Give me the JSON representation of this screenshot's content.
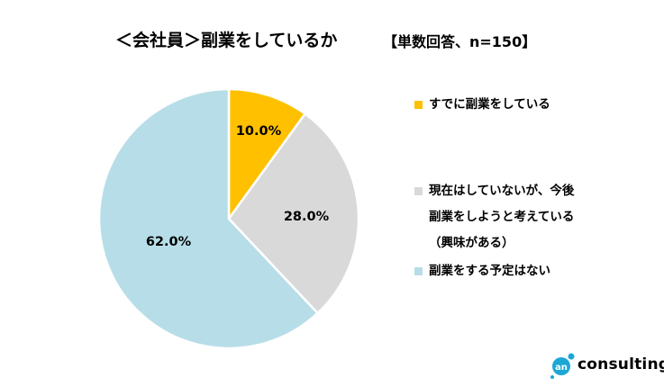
{
  "chart_data": {
    "type": "pie",
    "title": "＜会社員＞副業をしているか",
    "subtitle": "【単数回答、n=150】",
    "start": "top",
    "direction": "clockwise",
    "slices": [
      {
        "label": "すでに副業をしている",
        "label_lines": [
          "すでに副業をしている"
        ],
        "value": 10.0,
        "data_label": "10.0%",
        "color": "#FFC000"
      },
      {
        "label": "現在はしていないが、今後副業をしようと考えている（興味がある）",
        "label_lines": [
          "現在はしていないが、今後",
          "副業をしようと考えている",
          "（興味がある）"
        ],
        "value": 28.0,
        "data_label": "28.0%",
        "color": "#D9D9D9"
      },
      {
        "label": "副業をする予定はない",
        "label_lines": [
          "副業をする予定はない"
        ],
        "value": 62.0,
        "data_label": "62.0%",
        "color": "#B7DEE8"
      }
    ],
    "legend_position": "right"
  },
  "logo": {
    "text": "an consulting",
    "mark_text": "an",
    "word": "consulting",
    "color": "#1BA8D6"
  }
}
